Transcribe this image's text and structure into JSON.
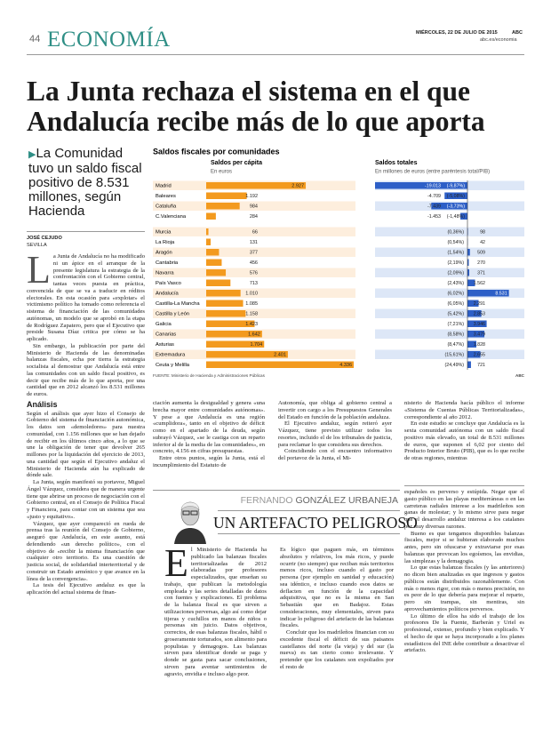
{
  "header": {
    "page_number": "44",
    "section": "ECONOMÍA",
    "date": "MIÉRCOLES, 22 DE JULIO DE 2015",
    "brand": "ABC",
    "url": "abc.es/economia"
  },
  "article": {
    "headline": [
      "La Junta rechaza el sistema en el que",
      "Andalucía recibe más de lo que aporta"
    ],
    "deck": "La Comunidad tuvo un saldo fiscal positivo de 8.531 millones, según Hacienda",
    "author": "JOSÉ CEJUDO",
    "location": "SEVILLA",
    "drop_cap": "L",
    "intro": [
      "a Junta de Andalucía no ha modificado ni un ápice en el arranque de la presente legislatura la estrategia de la confrontación con el Gobierno central, tantas veces puesta en práctica, convencida de que se va a traducir en réditos electorales. En esta ocasión para «explotar» el victimismo político ha tomado como referencia el sistema de financiación de las comunidades autónomas, un modelo que se aprobó en la etapa de Rodríguez Zapatero, pero que el Ejecutivo que preside Susana Díaz critica por cómo se ha aplicado.",
      "Sin embargo, la publicación por parte del Ministerio de Hacienda de las denominadas balanzas fiscales, echa por tierra la estrategia socialista al demostrar que Andalucía está entre las comunidades con un saldo fiscal positivo, es decir que recibe más de lo que aporta, por una cantidad que en 2012 alcanzó los 8.531 millones de euros."
    ],
    "subhead": "Análisis",
    "body_left": [
      "Según el análisis que ayer hizo el Consejo de Gobierno del sistema de financiación autonómica, los datos son «demoledores» para nuestra comunidad, con 1.156 millones que se han dejado de recibir en los últimos cinco años, a lo que se une la obligación de tener que devolver 265 millones por la liquidación del ejercicio de 2013, una cantidad que según el Ejecutivo andaluz el Ministerio de Hacienda aún ha explicado de dónde sale.",
      "La Junta, según manifestó su portavoz, Miguel Ángel Vázquez, considera que de manera urgente tiene que abrirse un proceso de negociación con el Gobierno central, en el Consejo de Política Fiscal y Financiera, para contar con un sistema que sea «justo y equitativo».",
      "Vázquez, que ayer compareció en rueda de prensa tras la reunión del Consejo de Gobierno, aseguró que Andalucía, en este asunto, está defendiendo «un derecho político», con el objetivo de «recibir la misma financiación que cualquier otro territorio. Es una cuestión de justicia social, de solidaridad interterritorial y de construir un Estado armónico y que avance en la línea de la convergencia».",
      "La tesis del Ejecutivo andaluz es que la aplicación del actual sistema de finan-"
    ],
    "body_mid_1": [
      "ciación aumenta la desigualdad y genera «una brecha mayor entre comunidades autónomas». Y pese a que Andalucía es una región «cumplidora», tanto en el objetivo de déficit como en el apartado de la deuda, según subrayó Vázquez, «se le castiga con un reparto inferior al de la media de las comunidades», en concreto, 4.156 en cifras presupuestas.",
      "Entre otros puntos, según la Junta, está el incumplimiento del Estatuto de"
    ],
    "body_mid_2": [
      "Autonomía, que obliga al gobierno central a invertir con cargo a los Presupuestos Generales del Estado en función de la población andaluza.",
      "El Ejecutivo andaluz, según reiteró ayer Vázquez, tiene previsto utilizar todos los resortes, incluido el de los tribunales de justicia, para reclamar lo que considera sus derechos.",
      "Coincidiendo con el encuentro informativo del portavoz de la Junta, el Mi-"
    ],
    "body_mid_3": [
      "nisterio de Hacienda hacía público el informe «Sistema de Cuentas Públicas Territorializadas», correspondiente al año 2012.",
      "En este estudio se concluye que Andalucía es la sexta comunidad autónoma con un saldo fiscal positivo más elevado, un total de 8.531 millones de euros, que suponen el 6,02 por ciento del Producto Interior Bruto (PIB), que es lo que recibe de otras regiones, mientras"
    ]
  },
  "opinion": {
    "author_first": "FERNANDO",
    "author_last": "GONZÁLEZ URBANEJA",
    "title": "UN ARTEFACTO PELIGROSO",
    "drop_cap": "E",
    "col_1": [
      "l Ministerio de Hacienda ha publicado las balanzas fiscales territorializadas de 2012 elaboradas por profesores especializados, que enseñan su trabajo, que publican la metodología empleada y las series detalladas de datos con fuentes y explicaciones. El problema de la balanza fiscal es que sirven a utilizaciones perversas, algo así como dejar tijeras y cuchillos en manos de niños o personas sin juicio. Datos objetivos, correctos, de esas balanzas fiscales, hábil o groseramente torturados, son alimento para populistas y demagogos. Las balanzas sirven para identificar donde se paga y donde se gasta para sacar conclusiones, sirven para aventar sentimientos de agravio, envidia e incluso algo peor."
    ],
    "col_2": [
      "Es lógico que paguen más, en términos absolutos y relativos, los más ricos, y puede ocurrir (no siempre) que reciban más territorios menos ricos, incluso cuando el gasto por persona (por ejemplo en sanidad y educación) sea idéntico, e incluso cuando esos datos se deflacten en función de la capacidad adquisitiva, que no es la misma en San Sebastián que en Badajoz. Estas consideraciones, muy elementales, sirven para indicar lo peligroso del artefacto de las balanzas fiscales.",
      "Concluir que los madrileños financian con su excedente fiscal el déficit de sus paisanos castellanos del norte (la vieja) y del sur (la nueva) es tan cierto como irrelevante. Y pretender que los catalanes son expoliados por el resto de"
    ],
    "col_3": [
      "españoles es perverso y estúpida. Negar que el gasto público en las playas mediterráneas o en las carreteras radiales interese a los madrileños son ganas de molestar; y lo mismo sirve para negar que el desarrollo andaluz interesa a los catalanes por muy diversas razones.",
      "Bueno es que tengamos disponibles balanzas fiscales, mejor si se hubieran elaborado muchos antes, pero sin ofuscarse y extraviarse por esas balanzas que provocan los egoísmos, las envidias, las simplezas y la demagogia.",
      "Lo que estas balanzas fiscales (y las anteriores) no dicen bien analizadas es que ingresos y gastos públicos están distribuidos razonablemente. Con más o menos rigor, con más o menos precisión, no es peor de lo que debería para mejorar el reparto, pero sin trampas, sin mentiras, sin aprovechamientos políticos perversos.",
      "Lo último de ellos ha sido el trabajo de los profesores De la Fuente, Barberán y Uriel es profesional, extenso, profundo y bien explicado. Y el hecho de que se haya incorporado a los planes estadísticos del INE debe contribuir a desactivar el artefacto."
    ]
  },
  "graphic": {
    "title": "Saldos fiscales por comunidades",
    "source": "FUENTE: Ministerio de Hacienda y Administraciones Públicas",
    "credit": "ABC"
  },
  "chart_data": [
    {
      "type": "bar",
      "orientation": "horizontal",
      "title": "Saldos per cápita",
      "subtitle": "En euros",
      "categories": [
        "Madrid",
        "Baleares",
        "Cataluña",
        "C.Valenciana",
        "Murcia",
        "La Rioja",
        "Aragón",
        "Cantabria",
        "Navarra",
        "País Vasco",
        "Andalucía",
        "Castilla-La Mancha",
        "Castilla y León",
        "Galicia",
        "Canarias",
        "Asturias",
        "Extremadura",
        "Ceuta y Melilla"
      ],
      "values": [
        2927,
        1192,
        984,
        284,
        66,
        131,
        377,
        456,
        576,
        713,
        1010,
        1085,
        1158,
        1423,
        1642,
        1704,
        2401,
        4336
      ],
      "value_labels": [
        "2.927",
        "1.192",
        "984",
        "284",
        "66",
        "131",
        "377",
        "456",
        "576",
        "713",
        "1.010",
        "1.085",
        "1.158",
        "1.423",
        "1.642",
        "1.704",
        "2.401",
        "4.336"
      ],
      "color": "#f39a1e"
    },
    {
      "type": "bar",
      "orientation": "horizontal",
      "title": "Saldos totales",
      "subtitle": "En millones de euros (entre paréntesis total/PIB)",
      "values": [
        -19013,
        -4709,
        -7439,
        -1453,
        98,
        42,
        509,
        270,
        371,
        1562,
        8531,
        2291,
        2853,
        3946,
        3479,
        1828,
        2655,
        721
      ],
      "value_labels": [
        "-19.013",
        "-4.709",
        "-7.439",
        "-1.453",
        "98",
        "42",
        "509",
        "270",
        "371",
        "1.562",
        "8.531",
        "2.291",
        "2.853",
        "3.946",
        "3.479",
        "1.828",
        "2.655",
        "721"
      ],
      "pct_labels": [
        "(-9,87%)",
        "(-5,08%)",
        "(-3,73%)",
        "(-1,48%)",
        "(0,36%)",
        "(0,54%)",
        "(1,54%)",
        "(2,19%)",
        "(2,09%)",
        "(2,43%)",
        "(6,02%)",
        "(6,05%)",
        "(5,42%)",
        "(7,21%)",
        "(8,58%)",
        "(8,47%)",
        "(15,61%)",
        "(24,49%)"
      ],
      "color": "#2d5fc7"
    }
  ]
}
